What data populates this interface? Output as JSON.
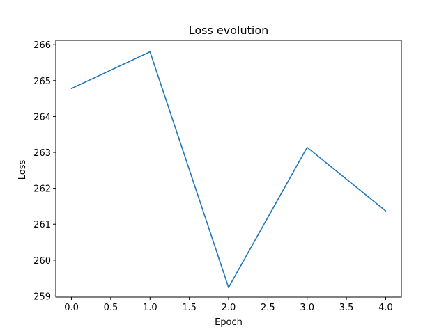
{
  "chart_data": {
    "type": "line",
    "title": "Loss evolution",
    "xlabel": "Epoch",
    "ylabel": "Loss",
    "x": [
      0,
      1,
      2,
      3,
      4
    ],
    "series": [
      {
        "values": [
          264.78,
          265.8,
          259.24,
          263.14,
          261.37
        ]
      }
    ],
    "xlim": [
      -0.2,
      4.2
    ],
    "ylim": [
      258.97,
      266.12
    ],
    "xticks": [
      0.0,
      0.5,
      1.0,
      1.5,
      2.0,
      2.5,
      3.0,
      3.5,
      4.0
    ],
    "xtick_labels": [
      "0.0",
      "0.5",
      "1.0",
      "1.5",
      "2.0",
      "2.5",
      "3.0",
      "3.5",
      "4.0"
    ],
    "yticks": [
      259,
      260,
      261,
      262,
      263,
      264,
      265,
      266
    ],
    "ytick_labels": [
      "259",
      "260",
      "261",
      "262",
      "263",
      "264",
      "265",
      "266"
    ],
    "grid": false,
    "line_color": "#1f77b4"
  }
}
